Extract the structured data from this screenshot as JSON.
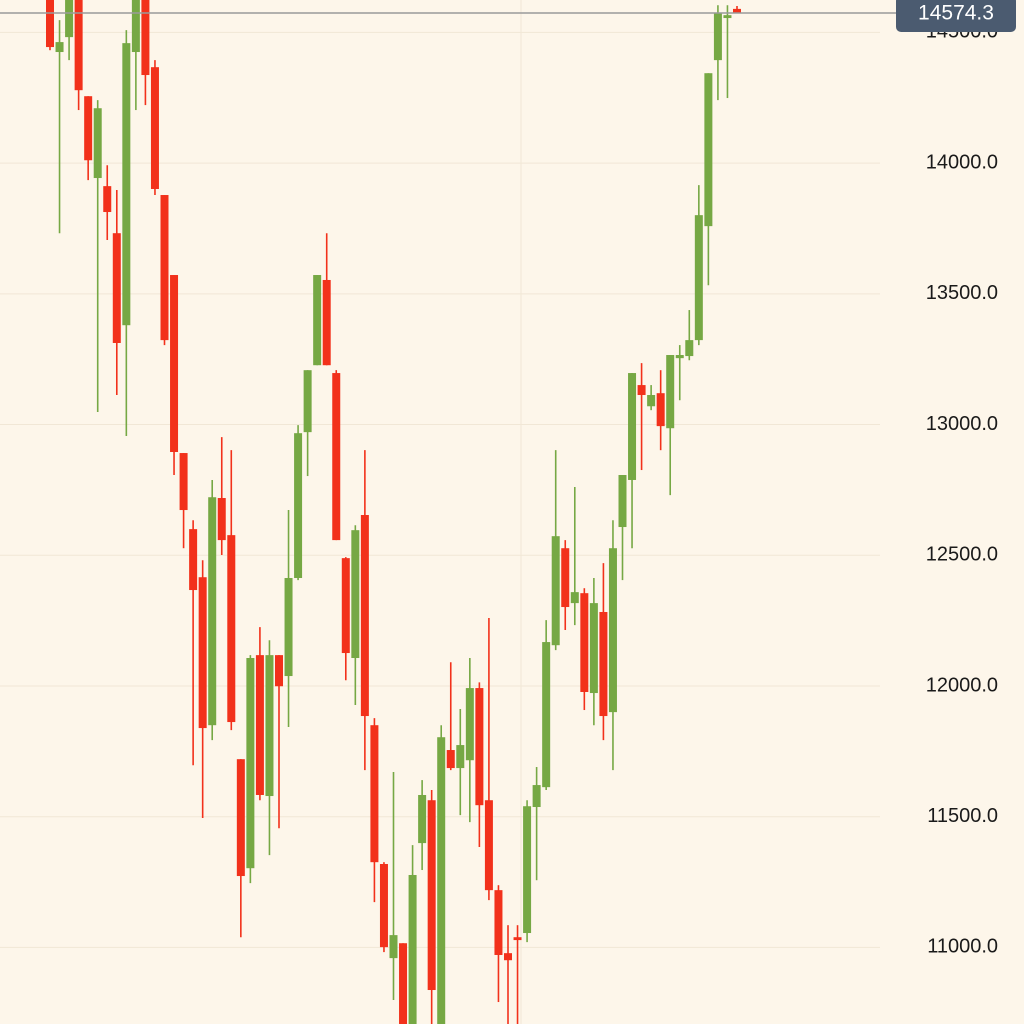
{
  "chart_data": {
    "type": "candlestick",
    "up_color": "#76a844",
    "down_color": "#f2311b",
    "grid": true,
    "ylim": [
      10707,
      14624
    ],
    "yticks": [
      {
        "value": 11000,
        "label": "11000.0"
      },
      {
        "value": 11500,
        "label": "11500.0"
      },
      {
        "value": 12000,
        "label": "12000.0"
      },
      {
        "value": 12500,
        "label": "12500.0"
      },
      {
        "value": 13000,
        "label": "13000.0"
      },
      {
        "value": 13500,
        "label": "13500.0"
      },
      {
        "value": 14000,
        "label": "14000.0"
      },
      {
        "value": 14500,
        "label": "14500.0"
      }
    ],
    "last_price": 14574.3,
    "open": [
      14650,
      14425,
      14482,
      14650,
      14256,
      13943,
      13912,
      13732,
      13380,
      14425,
      14650,
      14367,
      13878,
      13572,
      12891,
      12600,
      12416,
      11850,
      12719,
      12577,
      11720,
      11303,
      12118,
      11579,
      12118,
      12038,
      12413,
      12971,
      13227,
      13553,
      13197,
      12489,
      12107,
      12654,
      11850,
      11319,
      10959,
      11016,
      10690,
      11399,
      11563,
      10690,
      11755,
      11686,
      11716,
      11992,
      11563,
      11219,
      10978,
      11039,
      11055,
      11537,
      11613,
      12156,
      12527,
      12317,
      12355,
      11973,
      12283,
      11900,
      12608,
      12788,
      13151,
      13070,
      13120,
      12986,
      13254,
      13262,
      13323,
      13759,
      14394,
      14555,
      14590
    ],
    "high": [
      14680,
      14547,
      14660,
      14670,
      14256,
      14241,
      13992,
      13897,
      14509,
      14670,
      14680,
      14394,
      13878,
      13572,
      12891,
      12634,
      12481,
      12788,
      12952,
      12902,
      11720,
      12118,
      12225,
      12175,
      12118,
      12673,
      12998,
      13208,
      13572,
      13732,
      13208,
      12493,
      12615,
      12902,
      11877,
      11326,
      11671,
      11016,
      11391,
      11640,
      11602,
      11850,
      12091,
      11912,
      12107,
      12014,
      12260,
      11238,
      11085,
      11085,
      11563,
      11690,
      12252,
      12902,
      12558,
      12761,
      12374,
      12413,
      12470,
      12634,
      12807,
      13197,
      13235,
      13151,
      13208,
      13266,
      13304,
      13438,
      13916,
      14344,
      14604,
      14604,
      14601
    ],
    "low": [
      14432,
      13732,
      14394,
      14203,
      13935,
      13048,
      13706,
      13113,
      12956,
      14203,
      14222,
      13878,
      13304,
      12807,
      12527,
      11697,
      11495,
      11793,
      12501,
      11831,
      11039,
      11246,
      11563,
      11353,
      11456,
      11843,
      12405,
      12803,
      13227,
      13227,
      12558,
      12022,
      11927,
      11678,
      11173,
      10982,
      10799,
      10650,
      10650,
      11296,
      10650,
      10650,
      11678,
      11506,
      11479,
      11384,
      11181,
      10791,
      10650,
      10650,
      11020,
      11257,
      11602,
      12137,
      12214,
      12233,
      11908,
      11850,
      11793,
      11678,
      12405,
      12527,
      12826,
      13055,
      12902,
      12730,
      13093,
      13246,
      13304,
      13533,
      14241,
      14249,
      14574.3
    ],
    "close": [
      14444,
      14463,
      14640,
      14279,
      14011,
      14210,
      13813,
      13312,
      14459,
      14640,
      14337,
      13901,
      13323,
      12895,
      12673,
      12367,
      11839,
      12722,
      12558,
      11862,
      11273,
      12107,
      11583,
      12118,
      11999,
      12413,
      12967,
      13208,
      13572,
      13227,
      12558,
      12126,
      12596,
      11885,
      11326,
      11001,
      11047,
      10690,
      11277,
      11583,
      10837,
      11804,
      11686,
      11774,
      11992,
      11544,
      11219,
      10971,
      10951,
      11028,
      11540,
      11621,
      12168,
      12573,
      12302,
      12359,
      11977,
      12317,
      11885,
      12527,
      12807,
      13197,
      13113,
      13113,
      12994,
      13266,
      13266,
      13323,
      13801,
      14344,
      14574,
      14566,
      14574.3
    ]
  }
}
